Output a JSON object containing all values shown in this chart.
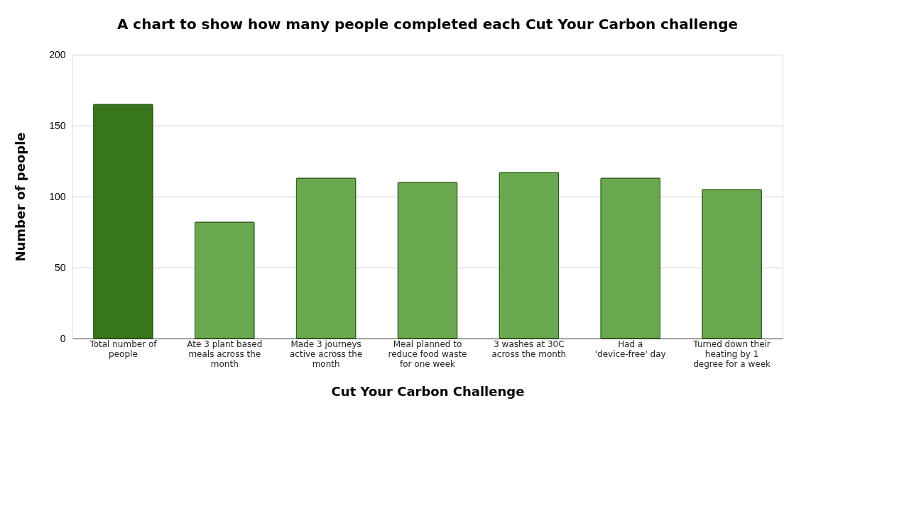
{
  "chart_data": {
    "type": "bar",
    "title": "A chart to show how many people completed each Cut Your Carbon challenge",
    "xlabel": "Cut Your Carbon Challenge",
    "ylabel": "Number of people",
    "categories": [
      "Total number of people",
      "Ate 3 plant based meals across the month",
      "Made 3 journeys active across the month",
      "Meal planned to reduce food waste for one week",
      "3 washes at 30C across the month",
      "Had a 'device-free' day",
      "Turned down their heating by 1 degree for a week"
    ],
    "values": [
      165,
      82,
      113,
      110,
      117,
      113,
      105
    ],
    "colors": [
      "#38761d",
      "#6aa84f",
      "#6aa84f",
      "#6aa84f",
      "#6aa84f",
      "#6aa84f",
      "#6aa84f"
    ],
    "ylim": [
      0,
      200
    ],
    "yticks": [
      0,
      50,
      100,
      150,
      200
    ],
    "grid": "y"
  }
}
